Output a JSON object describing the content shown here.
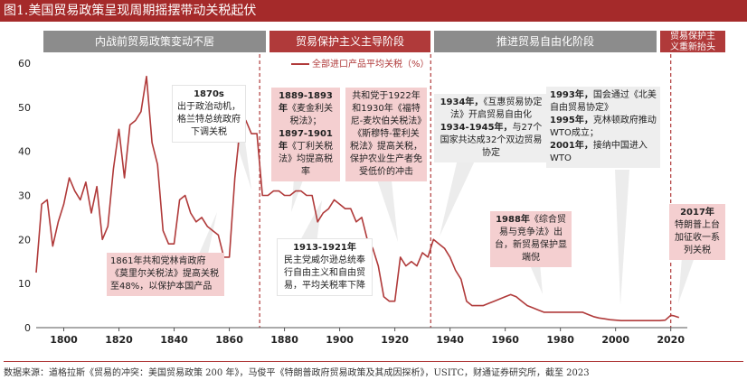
{
  "title": "图1.美国贸易政策呈现周期摇摆带动关税起伏",
  "phases": [
    {
      "label": "内战前贸易政策变动不居"
    },
    {
      "label": "贸易保护主义主导阶段"
    },
    {
      "label": "推进贸易自由化阶段"
    },
    {
      "label": "贸易保护主义重新抬头"
    }
  ],
  "legend": "全部进口产品平均关税（%）",
  "colors": {
    "line": "#b03a3a",
    "pink_box": "#f4cfd0",
    "grey_box": "#eeeeee",
    "phase_grey": "#8c8c8c",
    "phase_red": "#b03a3a"
  },
  "annotations": {
    "a1870": {
      "year": "1870s",
      "text": "出于政治动机，格兰特总统政府下调关税"
    },
    "a1861": {
      "text": "1861年共和党林肯政府《莫里尔关税法》提高关税至48%，以保护本国产品"
    },
    "a1889": {
      "y1": "1889-1893年",
      "t1": "《麦金利关税法》；",
      "y2": "1897-1901年",
      "t2": "《丁利关税法》均提高税率"
    },
    "a1913": {
      "year": "1913-1921年",
      "text": "民主党威尔逊总统奉行自由主义和自由贸易，平均关税率下降"
    },
    "a1922": {
      "text": "共和党于1922年和1930年《福特尼-麦坎伯关税法》《斯穆特-霍利关税法》提高关税，保护农业生产者免受低价的冲击"
    },
    "a1934": {
      "y1": "1934年，",
      "t1": "《互惠贸易协定法》开启贸易自由化",
      "y2": "1934-1945年，",
      "t2": "与27个国家共达成32个双边贸易协定"
    },
    "a1988": {
      "year": "1988年",
      "text": "《综合贸易与竞争法》出台，新贸易保护显端倪"
    },
    "a1993": {
      "y1": "1993年，",
      "t1": "国会通过《北美自由贸易协定》",
      "y2": "1995年，",
      "t2": "克林顿政府推动WTO成立；",
      "y3": "2001年，",
      "t3": "接纳中国进入WTO"
    },
    "a2017": {
      "year": "2017年",
      "text": "特朗普上台加征收一系列关税"
    }
  },
  "chart_data": {
    "type": "line",
    "title": "美国贸易政策呈现周期摇摆带动关税起伏",
    "series": [
      {
        "name": "全部进口产品平均关税（%）",
        "x": [
          1790,
          1792,
          1794,
          1796,
          1798,
          1800,
          1802,
          1804,
          1806,
          1808,
          1810,
          1812,
          1814,
          1816,
          1818,
          1820,
          1822,
          1824,
          1826,
          1828,
          1830,
          1832,
          1834,
          1836,
          1838,
          1840,
          1842,
          1844,
          1846,
          1848,
          1850,
          1852,
          1854,
          1856,
          1858,
          1860,
          1862,
          1864,
          1866,
          1868,
          1870,
          1872,
          1874,
          1876,
          1878,
          1880,
          1882,
          1884,
          1886,
          1888,
          1890,
          1892,
          1894,
          1896,
          1898,
          1900,
          1902,
          1904,
          1906,
          1908,
          1910,
          1912,
          1914,
          1916,
          1918,
          1920,
          1922,
          1924,
          1926,
          1928,
          1930,
          1932,
          1934,
          1936,
          1938,
          1940,
          1942,
          1944,
          1946,
          1948,
          1950,
          1952,
          1954,
          1956,
          1958,
          1960,
          1962,
          1964,
          1966,
          1968,
          1970,
          1972,
          1974,
          1976,
          1978,
          1980,
          1982,
          1984,
          1986,
          1988,
          1990,
          1992,
          1994,
          1996,
          1998,
          2000,
          2002,
          2004,
          2006,
          2008,
          2010,
          2012,
          2014,
          2016,
          2018,
          2020,
          2021,
          2022,
          2023
        ],
        "values": [
          12.5,
          28,
          29,
          18.5,
          24,
          28,
          34,
          31,
          29,
          33,
          26,
          32,
          20,
          23,
          36,
          45,
          34,
          46,
          47,
          49,
          57,
          42,
          37,
          22,
          19,
          19,
          29,
          30,
          26,
          24,
          25,
          23,
          22,
          21,
          16,
          16,
          34,
          46,
          47,
          44,
          44,
          30,
          30,
          31,
          31,
          30,
          30,
          31,
          31,
          30,
          30,
          24,
          26,
          27,
          29,
          28,
          27,
          27,
          24,
          25,
          20,
          18,
          14,
          7,
          6,
          6,
          16,
          14,
          15,
          14,
          17,
          16,
          20,
          19,
          18,
          16,
          13,
          11,
          6,
          5,
          5,
          5,
          5.5,
          6,
          6.5,
          7,
          7.5,
          7,
          6,
          5,
          4.5,
          4,
          3.5,
          3.5,
          3.5,
          3.5,
          3.5,
          3.5,
          3.5,
          3.5,
          3,
          2.5,
          2.2,
          2,
          1.8,
          1.7,
          1.6,
          1.6,
          1.6,
          1.6,
          1.6,
          1.6,
          1.6,
          1.6,
          1.7,
          2.8,
          2.7,
          2.5,
          2.3
        ]
      }
    ],
    "xlabel": "",
    "ylabel": "",
    "xlim": [
      1790,
      2026
    ],
    "ylim": [
      0,
      60
    ],
    "xticks": [
      1800,
      1820,
      1840,
      1860,
      1880,
      1900,
      1920,
      1940,
      1960,
      1980,
      2000,
      2020
    ],
    "yticks": [
      0,
      10,
      20,
      30,
      40,
      50,
      60
    ],
    "phase_dividers": [
      1871,
      1933,
      2020
    ],
    "legend_position": "top-center"
  },
  "source": "数据来源：道格拉斯《贸易的冲突：美国贸易政策 200 年》，马俊平《特朗普政府贸易政策及其成因探析》，USITC，财通证券研究所，截至 2023"
}
